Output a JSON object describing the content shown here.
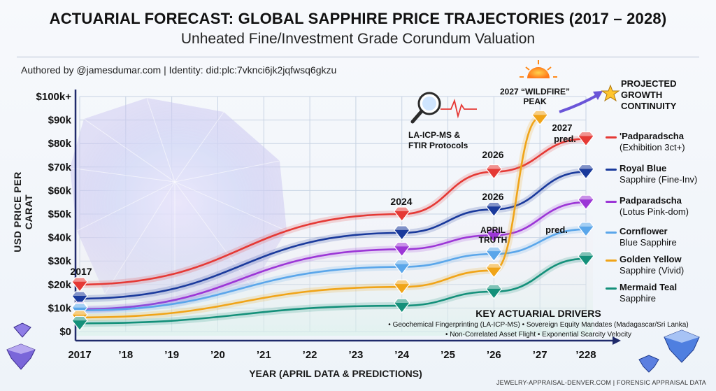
{
  "header": {
    "title": "ACTUARIAL FORECAST: GLOBAL SAPPHIRE PRICE TRAJECTORIES (2017 – 2028)",
    "subtitle": "Unheated Fine/Investment Grade Corundum Valuation",
    "byline": "Authored by @jamesdumar.com | Identity: did:plc:7vknci6jk2jqfwsq6gkzu"
  },
  "footer": {
    "credit": "JEWELRY-APPRAISAL-DENVER.COM | FORENSIC APPRAISAL DATA"
  },
  "annotations": {
    "lab_line1": "LA-ICP-MS &",
    "lab_line2": "FTIR Protocols",
    "wildfire_line1": "2027 “WILDFIRE”",
    "wildfire_line2": "PEAK",
    "projected_line1": "PROJECTED",
    "projected_line2": "GROWTH",
    "projected_line3": "CONTINUITY",
    "april_line1": "APRIL",
    "april_line2": "TRUTH",
    "label_2017": "2017",
    "label_2024": "2024",
    "label_2026a": "2026",
    "label_2026b": "2026",
    "label_2027_pred_1": "2027",
    "label_2027_pred_2": "pred.",
    "label_pred": "pred."
  },
  "drivers": {
    "title": "KEY ACTUARIAL DRIVERS",
    "line1": "• Geochemical Fingerprinting (LA-ICP-MS) • Sovereign Equity Mandates (Madagascar/Sri Lanka)",
    "line2": "• Non-Correlated Asset Flight • Exponential Scarcity Velocity"
  },
  "legend": [
    {
      "name": "'Padparadscha",
      "detail": "(Exhibition 3ct+)",
      "color": "#e53935"
    },
    {
      "name": "Royal Blue",
      "detail": "Sapphire (Fine-Inv)",
      "color": "#1a3a9c"
    },
    {
      "name": "Padparadscha",
      "detail": "(Lotus Pink-dom)",
      "color": "#9c36d6"
    },
    {
      "name": "Cornflower",
      "detail": "Blue Sapphire",
      "color": "#5aa6ea"
    },
    {
      "name": "Golden Yellow",
      "detail": "Sapphire (Vivid)",
      "color": "#f0a418"
    },
    {
      "name": "Mermaid Teal",
      "detail": "Sapphire",
      "color": "#14907a"
    }
  ],
  "chart_data": {
    "type": "line",
    "title": "ACTUARIAL FORECAST: GLOBAL SAPPHIRE PRICE TRAJECTORIES (2017 – 2028)",
    "subtitle": "Unheated Fine/Investment Grade Corundum Valuation",
    "xlabel": "YEAR (APRIL DATA & PREDICTIONS)",
    "ylabel": "USD PRICE PER CARAT",
    "x_tick_labels": [
      "2017",
      "’18",
      "’19",
      "’20",
      "’21",
      "’22",
      "’23",
      "’24",
      "’25",
      "’26",
      "’27",
      "’228"
    ],
    "y_tick_labels": [
      "$0",
      "$10k",
      "$20k",
      "$30k",
      "$40k",
      "$50k",
      "$60k",
      "$70k",
      "$80k",
      "$90k",
      "$100k+"
    ],
    "xlim": [
      2017,
      2028
    ],
    "ylim": [
      0,
      100000
    ],
    "grid": true,
    "legend_position": "right",
    "series": [
      {
        "name": "'Padparadscha (Exhibition 3ct+)",
        "color": "#e53935",
        "points": [
          [
            2017,
            20000
          ],
          [
            2024,
            50000
          ],
          [
            2026,
            68000
          ],
          [
            2028,
            82000
          ]
        ]
      },
      {
        "name": "Royal Blue Sapphire (Fine-Inv)",
        "color": "#1a3a9c",
        "points": [
          [
            2017,
            14000
          ],
          [
            2024,
            42000
          ],
          [
            2026,
            52000
          ],
          [
            2028,
            68000
          ]
        ]
      },
      {
        "name": "Padparadscha (Lotus Pink-dom)",
        "color": "#9c36d6",
        "points": [
          [
            2017,
            9500
          ],
          [
            2024,
            35000
          ],
          [
            2026,
            41000
          ],
          [
            2028,
            55000
          ]
        ]
      },
      {
        "name": "Cornflower Blue Sapphire",
        "color": "#5aa6ea",
        "points": [
          [
            2017,
            9000
          ],
          [
            2024,
            27500
          ],
          [
            2026,
            33000
          ],
          [
            2028,
            43500
          ]
        ]
      },
      {
        "name": "Golden Yellow Sapphire (Vivid)",
        "color": "#f0a418",
        "points": [
          [
            2017,
            6000
          ],
          [
            2024,
            19000
          ],
          [
            2026,
            26000
          ],
          [
            2027,
            91000
          ]
        ]
      },
      {
        "name": "Mermaid Teal Sapphire",
        "color": "#14907a",
        "points": [
          [
            2017,
            3500
          ],
          [
            2024,
            11000
          ],
          [
            2026,
            17000
          ],
          [
            2028,
            31000
          ]
        ]
      }
    ]
  }
}
